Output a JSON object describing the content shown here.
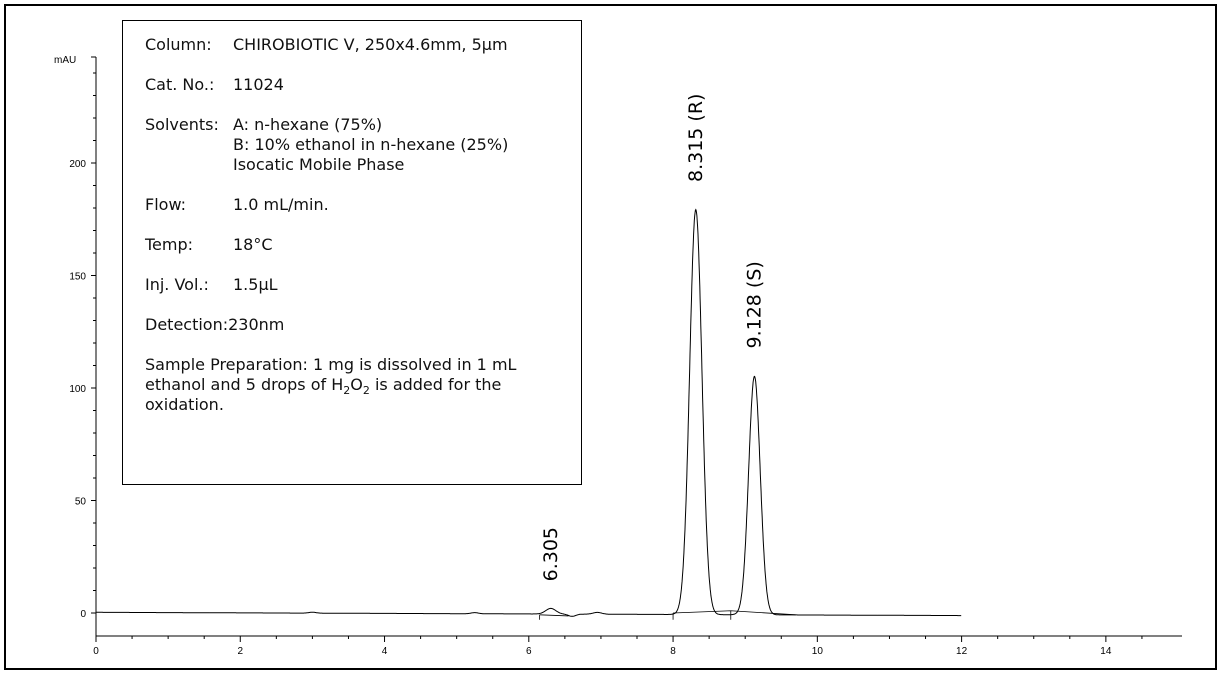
{
  "chart_data": {
    "type": "line",
    "ylabel": "mAU",
    "xlabel": "",
    "xlim": [
      0,
      15
    ],
    "ylim": [
      -8,
      244
    ],
    "x_ticks": [
      "0",
      "2",
      "4",
      "6",
      "8",
      "10",
      "12",
      "14"
    ],
    "y_ticks": [
      "0",
      "50",
      "100",
      "150",
      "200"
    ],
    "grid": false,
    "series": [
      {
        "peaks": [
          {
            "rt": 6.305,
            "height": 2.5,
            "label": "6.305"
          },
          {
            "rt": 8.315,
            "height": 180,
            "label": "8.315 (R)"
          },
          {
            "rt": 9.128,
            "height": 106,
            "label": "9.128 (S)"
          }
        ],
        "x_range": [
          0,
          12
        ]
      }
    ],
    "info": {
      "column_key": "Column:",
      "column_val": "CHIROBIOTIC V, 250x4.6mm, 5μm",
      "cat_key": "Cat. No.:",
      "cat_val": "11024",
      "solvents_key": "Solvents:",
      "solvent_a": "A: n-hexane (75%)",
      "solvent_b": "B: 10% ethanol in n-hexane (25%)",
      "mobile_phase": "Isocatic Mobile Phase",
      "flow_key": "Flow:",
      "flow_val": "1.0 mL/min.",
      "temp_key": "Temp:",
      "temp_val": "18°C",
      "inj_key": "Inj. Vol.:",
      "inj_val": "1.5μL",
      "detection_key": "Detection:",
      "detection_val": "230nm",
      "sample_pre": "Sample Preparation: 1 mg is dissolved in 1 mL ethanol and 5 drops of H",
      "sample_sub1": "2",
      "sample_mid": "O",
      "sample_sub2": "2",
      "sample_post": " is added for the oxidation."
    }
  }
}
